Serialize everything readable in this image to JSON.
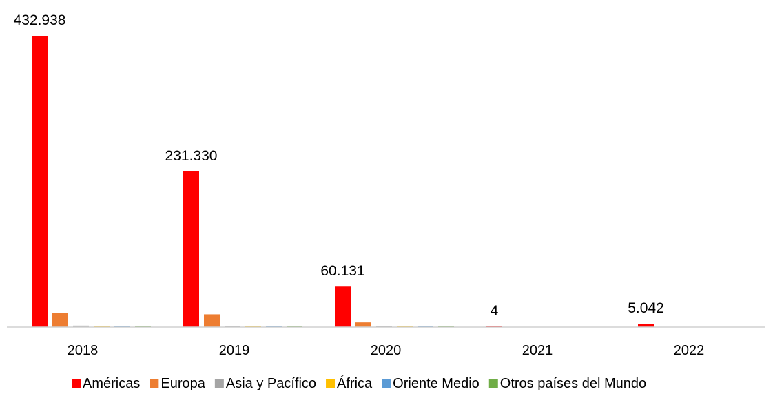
{
  "chart_data": {
    "type": "bar",
    "title": "",
    "xlabel": "",
    "ylabel": "",
    "categories": [
      "2018",
      "2019",
      "2020",
      "2021",
      "2022"
    ],
    "series": [
      {
        "name": "Américas",
        "color": "#ff0000",
        "values": [
          432938,
          231330,
          60131,
          4,
          5042
        ]
      },
      {
        "name": "Europa",
        "color": "#ed7d31",
        "values": [
          21000,
          19000,
          7000,
          0,
          0
        ]
      },
      {
        "name": "Asia y Pacífico",
        "color": "#a5a5a5",
        "values": [
          2200,
          2000,
          200,
          0,
          0
        ]
      },
      {
        "name": "África",
        "color": "#ffc000",
        "values": [
          300,
          300,
          100,
          0,
          0
        ]
      },
      {
        "name": "Oriente Medio",
        "color": "#5b9bd5",
        "values": [
          300,
          300,
          100,
          0,
          0
        ]
      },
      {
        "name": "Otros países del Mundo",
        "color": "#70ad47",
        "values": [
          300,
          300,
          100,
          0,
          0
        ]
      }
    ],
    "data_labels": [
      "432.938",
      "231.330",
      "60.131",
      "4",
      "5.042"
    ],
    "ylim": [
      0,
      432938
    ],
    "grid": false,
    "legend_position": "bottom"
  }
}
